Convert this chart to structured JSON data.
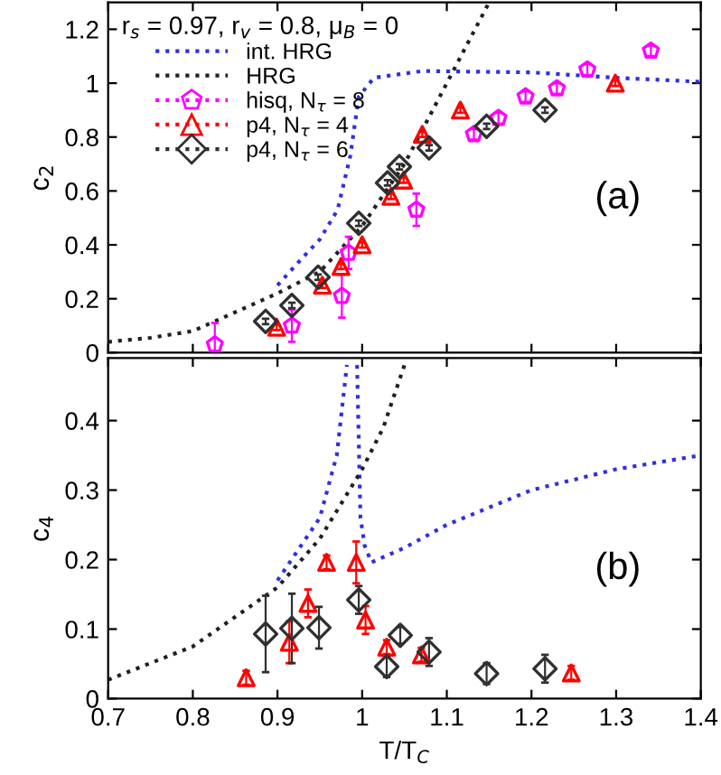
{
  "chart_data": [
    {
      "type": "line",
      "ylabel": "c$_{2}$",
      "legend_title": "r$_{s}$ = 0.97, r$_{v}$ = 0.8, μ$_{B}$ = 0",
      "annotations": [
        "(a)"
      ],
      "xlim": [
        0.7,
        1.4
      ],
      "ylim": [
        0,
        1.3
      ],
      "xticks": [
        0.7,
        0.8,
        0.9,
        1,
        1.1,
        1.2,
        1.3,
        1.4
      ],
      "yticks": [
        0,
        0.2,
        0.4,
        0.6,
        0.8,
        1,
        1.2
      ],
      "tick_labels": "y",
      "legend": "top left",
      "grid": false,
      "series": [
        {
          "name": "int. HRG",
          "line_style": "dotted",
          "marker": "none",
          "color": "#3030e0",
          "x": [
            0.9,
            0.929,
            0.95,
            0.971,
            0.986,
            0.996,
            1.014,
            1.071,
            1.2,
            1.3,
            1.4
          ],
          "values": [
            0.25,
            0.35,
            0.42,
            0.53,
            0.73,
            0.95,
            1.02,
            1.045,
            1.04,
            1.02,
            1.005
          ]
        },
        {
          "name": "HRG",
          "line_style": "dotted",
          "marker": "none",
          "color": "#202020",
          "x": [
            0.7,
            0.75,
            0.8,
            0.85,
            0.9,
            0.95,
            1.0,
            1.05,
            1.1,
            1.125,
            1.15
          ],
          "values": [
            0.04,
            0.055,
            0.08,
            0.15,
            0.22,
            0.3,
            0.47,
            0.7,
            1.0,
            1.15,
            1.3
          ]
        },
        {
          "name": "hisq, N$_{τ}$ = 8",
          "type": "scatter",
          "color": "#ff00ff",
          "x": [
            0.826,
            0.917,
            0.976,
            0.984,
            1.064,
            1.132,
            1.161,
            1.193,
            1.23,
            1.266,
            1.341
          ],
          "values": [
            0.03,
            0.1,
            0.21,
            0.37,
            0.53,
            0.81,
            0.87,
            0.95,
            0.98,
            1.05,
            1.12
          ],
          "errors": [
            0.08,
            0.06,
            0.08,
            0.06,
            0.06,
            0.02,
            0.02,
            0.02,
            0.02,
            0.02,
            0.02
          ]
        },
        {
          "name": "p4, N$_{τ}$ = 4",
          "type": "scatter",
          "marker": "triangle",
          "color": "#ff0000",
          "x": [
            0.899,
            0.953,
            0.975,
            1.0,
            1.034,
            1.049,
            1.071,
            1.116,
            1.299
          ],
          "values": [
            0.094,
            0.25,
            0.32,
            0.4,
            0.58,
            0.64,
            0.81,
            0.9,
            1.0
          ],
          "errors": [
            0.01,
            0.01,
            0.01,
            0.01,
            0.01,
            0.01,
            0.01,
            0.01,
            0.01
          ]
        },
        {
          "name": "p4, N$_{τ}$ = 6",
          "type": "scatter",
          "marker": "diamond",
          "color": "#303030",
          "x": [
            0.886,
            0.917,
            0.948,
            0.996,
            1.03,
            1.044,
            1.079,
            1.147,
            1.216
          ],
          "values": [
            0.116,
            0.175,
            0.28,
            0.48,
            0.63,
            0.69,
            0.76,
            0.84,
            0.9
          ],
          "errors": [
            0.01,
            0.01,
            0.01,
            0.01,
            0.01,
            0.01,
            0.01,
            0.01,
            0.01
          ]
        }
      ]
    },
    {
      "type": "line",
      "xlabel": "T/T$_{C}$",
      "ylabel": "c$_{4}$",
      "annotations": [
        "(b)"
      ],
      "xlim": [
        0.7,
        1.4
      ],
      "ylim": [
        0,
        0.49
      ],
      "xticks": [
        0.7,
        0.8,
        0.9,
        1,
        1.1,
        1.2,
        1.3,
        1.4
      ],
      "yticks": [
        0,
        0.1,
        0.2,
        0.3,
        0.4
      ],
      "legend": false,
      "grid": false,
      "series": [
        {
          "line_style": "dotted",
          "marker": "none",
          "color": "#3030e0",
          "x": [
            0.9,
            0.95,
            0.97,
            0.982,
            0.988,
            0.994,
            0.998,
            1.003,
            1.011,
            1.05,
            1.1,
            1.2,
            1.3,
            1.4
          ],
          "values": [
            0.17,
            0.26,
            0.35,
            0.48,
            null,
            0.48,
            0.26,
            0.22,
            0.196,
            0.217,
            0.25,
            0.3,
            0.33,
            0.35
          ]
        },
        {
          "line_style": "dotted",
          "marker": "none",
          "color": "#202020",
          "x": [
            0.7,
            0.8,
            0.9,
            0.95,
            1.0,
            1.025,
            1.05
          ],
          "values": [
            0.027,
            0.075,
            0.16,
            0.23,
            0.33,
            0.39,
            0.48
          ]
        },
        {
          "type": "scatter",
          "marker": "triangle",
          "color": "#ff0000",
          "x": [
            0.863,
            0.914,
            0.936,
            0.958,
            0.993,
            1.004,
            1.029,
            1.07,
            1.247
          ],
          "values": [
            0.03,
            0.081,
            0.137,
            0.196,
            0.196,
            0.113,
            0.074,
            0.063,
            0.037
          ],
          "errors": [
            0.01,
            0.03,
            0.02,
            0.01,
            0.03,
            0.02,
            0.01,
            0.01,
            0.01
          ]
        },
        {
          "type": "scatter",
          "marker": "diamond",
          "color": "#303030",
          "x": [
            0.886,
            0.917,
            0.949,
            0.996,
            1.029,
            1.045,
            1.079,
            1.147,
            1.216
          ],
          "values": [
            0.093,
            0.101,
            0.102,
            0.142,
            0.046,
            0.091,
            0.067,
            0.036,
            0.043
          ],
          "errors": [
            0.055,
            0.05,
            0.03,
            0.02,
            0.015,
            0.012,
            0.02,
            0.015,
            0.02
          ]
        }
      ]
    }
  ]
}
